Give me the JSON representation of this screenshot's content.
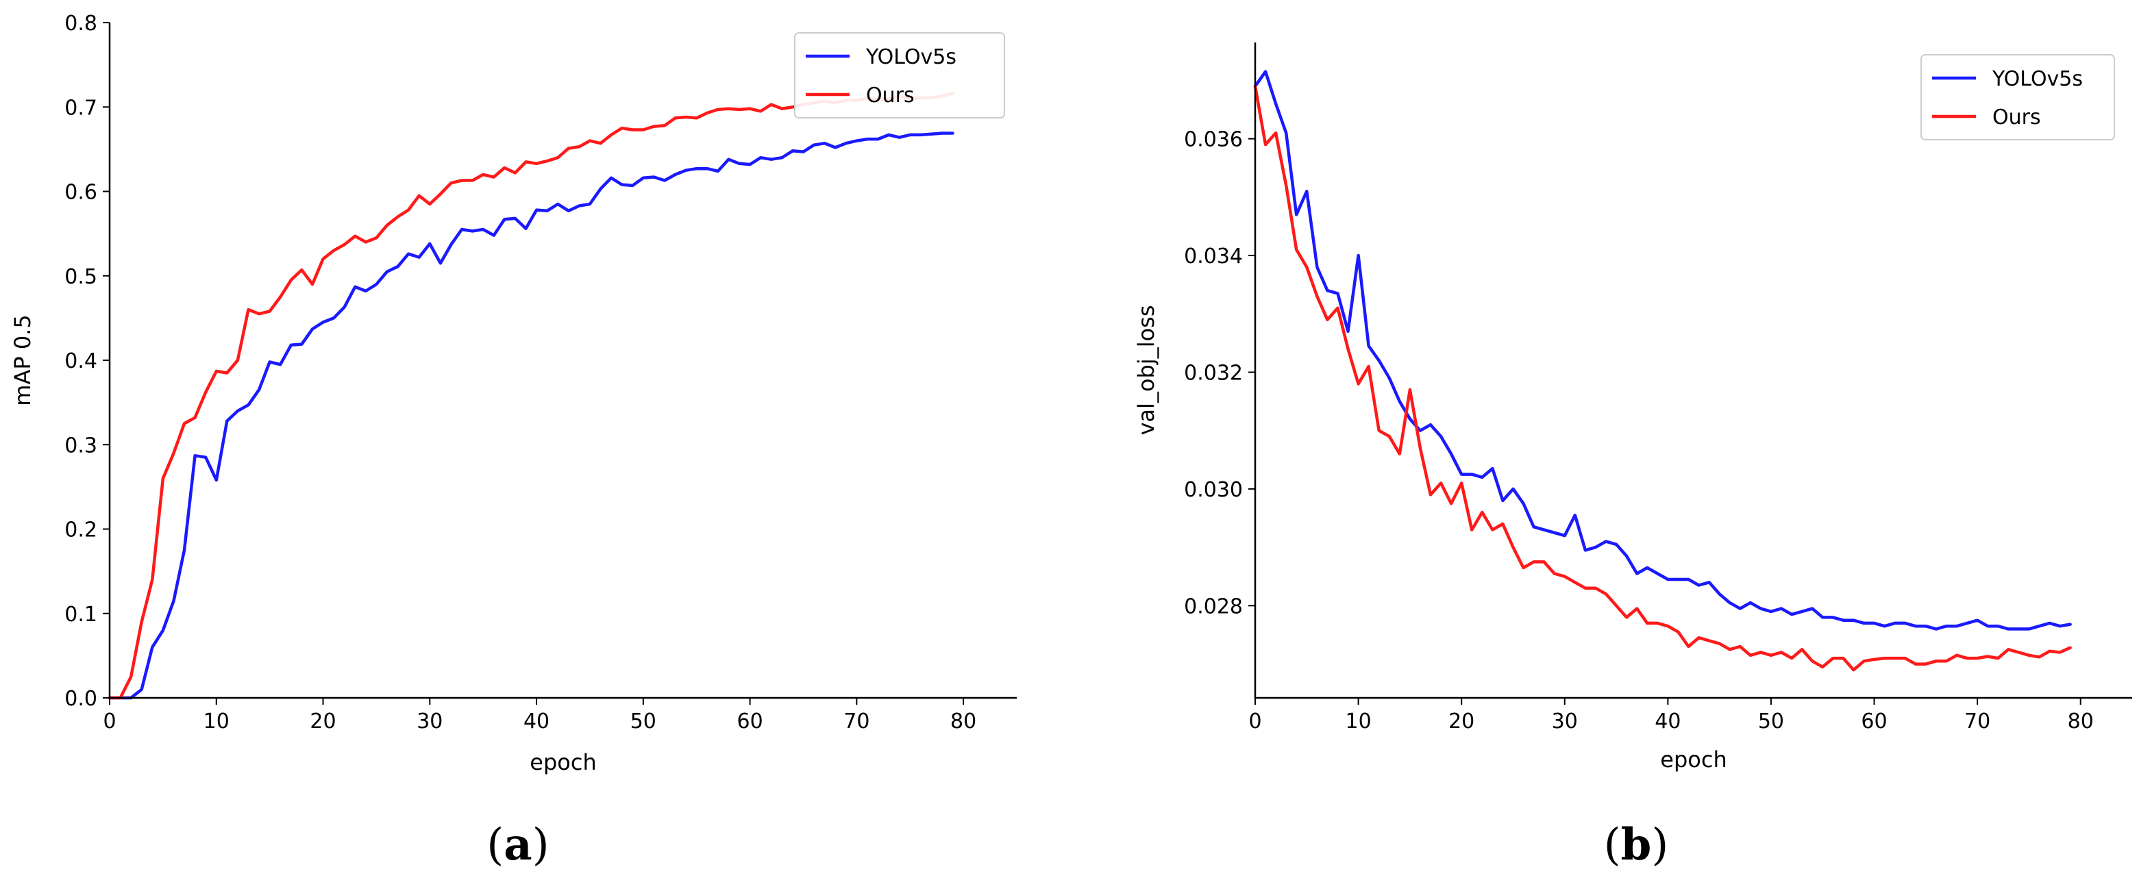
{
  "chart_data": [
    {
      "type": "line",
      "caption": {
        "open": "(",
        "letter": "a",
        "close": ")"
      },
      "xlabel": "epoch",
      "ylabel": "mAP 0.5",
      "xlim": [
        0,
        85
      ],
      "ylim": [
        0,
        0.8
      ],
      "xticks": [
        0,
        10,
        20,
        30,
        40,
        50,
        60,
        70,
        80
      ],
      "xtick_labels": [
        "0",
        "10",
        "20",
        "30",
        "40",
        "50",
        "60",
        "70",
        "80"
      ],
      "yticks": [
        0,
        0.1,
        0.2,
        0.3,
        0.4,
        0.5,
        0.6,
        0.7,
        0.8
      ],
      "ytick_labels": [
        "0.0",
        "0.1",
        "0.2",
        "0.3",
        "0.4",
        "0.5",
        "0.6",
        "0.7",
        "0.8"
      ],
      "legend_position": "top-right",
      "x": [
        0,
        1,
        2,
        3,
        4,
        5,
        6,
        7,
        8,
        9,
        10,
        11,
        12,
        13,
        14,
        15,
        16,
        17,
        18,
        19,
        20,
        21,
        22,
        23,
        24,
        25,
        26,
        27,
        28,
        29,
        30,
        31,
        32,
        33,
        34,
        35,
        36,
        37,
        38,
        39,
        40,
        41,
        42,
        43,
        44,
        45,
        46,
        47,
        48,
        49,
        50,
        51,
        52,
        53,
        54,
        55,
        56,
        57,
        58,
        59,
        60,
        61,
        62,
        63,
        64,
        65,
        66,
        67,
        68,
        69,
        70,
        71,
        72,
        73,
        74,
        75,
        76,
        77,
        78,
        79
      ],
      "series": [
        {
          "name": "YOLOv5s",
          "color": "#1a1aff",
          "values": [
            0.0,
            0.0,
            0.0,
            0.01,
            0.06,
            0.08,
            0.115,
            0.175,
            0.287,
            0.285,
            0.258,
            0.328,
            0.34,
            0.347,
            0.365,
            0.398,
            0.395,
            0.418,
            0.419,
            0.437,
            0.445,
            0.45,
            0.463,
            0.487,
            0.482,
            0.49,
            0.505,
            0.511,
            0.526,
            0.522,
            0.538,
            0.515,
            0.537,
            0.555,
            0.553,
            0.555,
            0.548,
            0.567,
            0.568,
            0.556,
            0.578,
            0.577,
            0.585,
            0.577,
            0.583,
            0.585,
            0.603,
            0.616,
            0.608,
            0.607,
            0.616,
            0.617,
            0.613,
            0.62,
            0.625,
            0.627,
            0.627,
            0.624,
            0.638,
            0.633,
            0.632,
            0.64,
            0.638,
            0.64,
            0.648,
            0.647,
            0.655,
            0.657,
            0.652,
            0.657,
            0.66,
            0.662,
            0.662,
            0.667,
            0.664,
            0.667,
            0.667,
            0.668,
            0.669,
            0.669
          ]
        },
        {
          "name": "Ours",
          "color": "#ff1a1a",
          "values": [
            0.0,
            0.0,
            0.025,
            0.09,
            0.14,
            0.26,
            0.29,
            0.325,
            0.332,
            0.362,
            0.387,
            0.385,
            0.4,
            0.46,
            0.455,
            0.458,
            0.475,
            0.495,
            0.507,
            0.49,
            0.52,
            0.53,
            0.537,
            0.547,
            0.54,
            0.545,
            0.56,
            0.57,
            0.578,
            0.595,
            0.585,
            0.597,
            0.61,
            0.613,
            0.613,
            0.62,
            0.617,
            0.628,
            0.622,
            0.635,
            0.633,
            0.636,
            0.64,
            0.651,
            0.653,
            0.66,
            0.657,
            0.667,
            0.675,
            0.673,
            0.673,
            0.677,
            0.678,
            0.687,
            0.688,
            0.687,
            0.693,
            0.697,
            0.698,
            0.697,
            0.698,
            0.695,
            0.703,
            0.698,
            0.7,
            0.703,
            0.705,
            0.707,
            0.705,
            0.708,
            0.708,
            0.71,
            0.709,
            0.71,
            0.713,
            0.71,
            0.711,
            0.711,
            0.713,
            0.716
          ]
        }
      ]
    },
    {
      "type": "line",
      "caption": {
        "open": "(",
        "letter": "b",
        "close": ")"
      },
      "xlabel": "epoch",
      "ylabel": "val_obj_loss",
      "xlim": [
        0,
        85
      ],
      "ylim": [
        0.02642,
        0.03765
      ],
      "xticks": [
        0,
        10,
        20,
        30,
        40,
        50,
        60,
        70,
        80
      ],
      "xtick_labels": [
        "0",
        "10",
        "20",
        "30",
        "40",
        "50",
        "60",
        "70",
        "80"
      ],
      "yticks": [
        0.028,
        0.03,
        0.032,
        0.034,
        0.036
      ],
      "ytick_labels": [
        "0.028",
        "0.030",
        "0.032",
        "0.034",
        "0.036"
      ],
      "legend_position": "top-right",
      "x": [
        0,
        1,
        2,
        3,
        4,
        5,
        6,
        7,
        8,
        9,
        10,
        11,
        12,
        13,
        14,
        15,
        16,
        17,
        18,
        19,
        20,
        21,
        22,
        23,
        24,
        25,
        26,
        27,
        28,
        29,
        30,
        31,
        32,
        33,
        34,
        35,
        36,
        37,
        38,
        39,
        40,
        41,
        42,
        43,
        44,
        45,
        46,
        47,
        48,
        49,
        50,
        51,
        52,
        53,
        54,
        55,
        56,
        57,
        58,
        59,
        60,
        61,
        62,
        63,
        64,
        65,
        66,
        67,
        68,
        69,
        70,
        71,
        72,
        73,
        74,
        75,
        76,
        77,
        78,
        79
      ],
      "series": [
        {
          "name": "YOLOv5s",
          "color": "#1a1aff",
          "values": [
            0.0369,
            0.03715,
            0.0366,
            0.0361,
            0.0347,
            0.0351,
            0.0338,
            0.0334,
            0.03335,
            0.0327,
            0.034,
            0.03245,
            0.0322,
            0.0319,
            0.0315,
            0.0312,
            0.031,
            0.0311,
            0.0309,
            0.0306,
            0.03025,
            0.03025,
            0.0302,
            0.03035,
            0.0298,
            0.03,
            0.02975,
            0.02935,
            0.0293,
            0.02925,
            0.0292,
            0.02955,
            0.02895,
            0.029,
            0.0291,
            0.02905,
            0.02885,
            0.02855,
            0.02865,
            0.02855,
            0.02845,
            0.02845,
            0.02845,
            0.02835,
            0.0284,
            0.0282,
            0.02805,
            0.02795,
            0.02805,
            0.02795,
            0.0279,
            0.02795,
            0.02785,
            0.0279,
            0.02795,
            0.0278,
            0.0278,
            0.02775,
            0.02775,
            0.0277,
            0.0277,
            0.02765,
            0.0277,
            0.0277,
            0.02765,
            0.02765,
            0.0276,
            0.02765,
            0.02765,
            0.0277,
            0.02775,
            0.02765,
            0.02765,
            0.0276,
            0.0276,
            0.0276,
            0.02765,
            0.0277,
            0.02765,
            0.02768
          ]
        },
        {
          "name": "Ours",
          "color": "#ff1a1a",
          "values": [
            0.0369,
            0.0359,
            0.0361,
            0.0352,
            0.0341,
            0.0338,
            0.0333,
            0.0329,
            0.0331,
            0.0324,
            0.0318,
            0.0321,
            0.031,
            0.0309,
            0.0306,
            0.0317,
            0.0307,
            0.0299,
            0.0301,
            0.02975,
            0.0301,
            0.0293,
            0.0296,
            0.0293,
            0.0294,
            0.029,
            0.02865,
            0.02875,
            0.02875,
            0.02855,
            0.0285,
            0.0284,
            0.0283,
            0.0283,
            0.0282,
            0.028,
            0.0278,
            0.02795,
            0.0277,
            0.0277,
            0.02765,
            0.02755,
            0.0273,
            0.02745,
            0.0274,
            0.02735,
            0.02725,
            0.0273,
            0.02715,
            0.0272,
            0.02715,
            0.0272,
            0.0271,
            0.02725,
            0.02705,
            0.02695,
            0.0271,
            0.0271,
            0.0269,
            0.02705,
            0.02708,
            0.0271,
            0.0271,
            0.0271,
            0.027,
            0.027,
            0.02705,
            0.02705,
            0.02715,
            0.0271,
            0.0271,
            0.02713,
            0.0271,
            0.02725,
            0.0272,
            0.02715,
            0.02712,
            0.02722,
            0.0272,
            0.02728
          ]
        }
      ]
    }
  ]
}
